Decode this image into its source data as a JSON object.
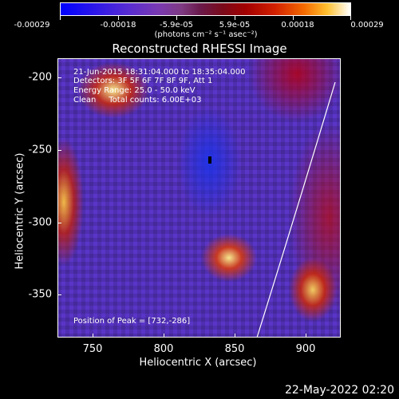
{
  "colorbar": {
    "tick_labels": [
      "-0.00029",
      "-0.00018",
      "-5.9e-05",
      "5.9e-05",
      "0.00018",
      "0.00029"
    ],
    "units": "(photons cm⁻² s⁻¹ asec⁻²)",
    "min": -0.00029,
    "max": 0.00029
  },
  "title": "Reconstructed RHESSI Image",
  "info": {
    "time": "21-Jun-2015 18:31:04.000 to 18:35:04.000",
    "detectors": "Detectors: 3F 5F 6F 7F 8F 9F, Att 1",
    "energy": "Energy Range: 25.0 - 50.0 keV",
    "clean": "Clean     Total counts: 6.00E+03",
    "peak": "Position of Peak = [732,-286]"
  },
  "x_axis": {
    "label": "Heliocentric X (arcsec)",
    "ticks": [
      "750",
      "800",
      "850",
      "900"
    ],
    "range": [
      730,
      920
    ]
  },
  "y_axis": {
    "label": "Heliocentric Y (arcsec)",
    "ticks": [
      "-200",
      "-250",
      "-300",
      "-350"
    ],
    "range": [
      -390,
      -190
    ]
  },
  "timestamp": "22-May-2022 02:20",
  "colors": {
    "background": "#000000",
    "text": "#ffffff"
  }
}
